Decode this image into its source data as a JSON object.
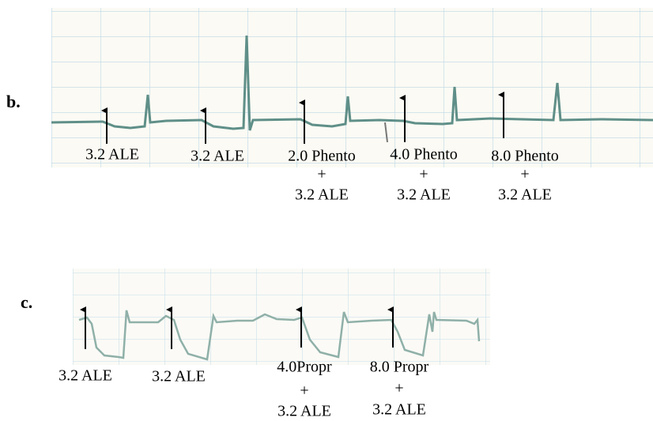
{
  "panels": [
    {
      "label": "b.",
      "annotations": [
        {
          "lines": [
            "3.2 ALE"
          ]
        },
        {
          "lines": [
            "3.2 ALE"
          ]
        },
        {
          "lines": [
            "2.0 Phento",
            "+",
            "3.2 ALE"
          ]
        },
        {
          "lines": [
            "4.0 Phento",
            "+",
            "3.2 ALE"
          ]
        },
        {
          "lines": [
            "8.0 Phento",
            "+",
            "3.2 ALE"
          ]
        }
      ]
    },
    {
      "label": "c.",
      "annotations": [
        {
          "lines": [
            "3.2 ALE"
          ]
        },
        {
          "lines": [
            "3.2 ALE"
          ]
        },
        {
          "lines": [
            "4.0Propr",
            "+",
            "3.2 ALE"
          ]
        },
        {
          "lines": [
            "8.0 Propr",
            "+",
            "3.2 ALE"
          ]
        }
      ]
    }
  ]
}
